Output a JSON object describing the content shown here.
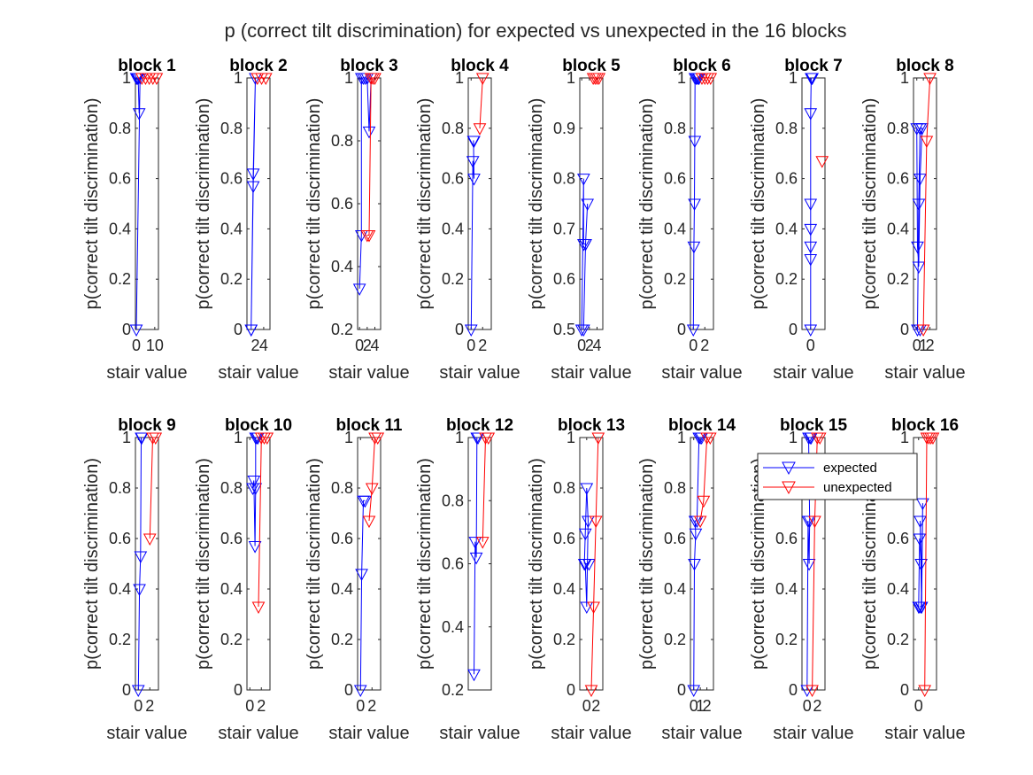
{
  "figure": {
    "title": "p (correct tilt discrimination) for expected vs unexpected in the 16 blocks"
  },
  "legend": {
    "expected": "expected",
    "unexpected": "unexpected",
    "location": "top-right (block 15 panel)"
  },
  "colors": {
    "expected": "#0000ff",
    "unexpected": "#ff0000"
  },
  "chart_data": [
    {
      "type": "line",
      "title": "block 1",
      "xlabel": "stair value",
      "ylabel": "p(correct tilt discrimination)",
      "xlim": [
        -0.5,
        12
      ],
      "ylim": [
        0,
        1
      ],
      "xticks": [
        0,
        10
      ],
      "yticks": [
        0,
        0.2,
        0.4,
        0.6,
        0.8,
        1
      ],
      "ytick_labels": [
        "0",
        "0.2",
        "0.4",
        "0.6",
        "0.8",
        "1"
      ],
      "series": [
        {
          "name": "expected",
          "x": [
            0,
            0.5,
            1,
            1.5,
            1,
            2,
            0
          ],
          "y": [
            1,
            1,
            1,
            0.86,
            1,
            1,
            0
          ]
        },
        {
          "name": "unexpected",
          "x": [
            3,
            5,
            7,
            9,
            11
          ],
          "y": [
            1,
            1,
            1,
            1,
            1
          ]
        }
      ]
    },
    {
      "type": "line",
      "title": "block 2",
      "xlabel": "stair value",
      "ylabel": "p(correct tilt discrimination)",
      "xlim": [
        0,
        5.5
      ],
      "ylim": [
        0,
        1
      ],
      "xticks": [
        2,
        4
      ],
      "yticks": [
        0,
        0.2,
        0.4,
        0.6,
        0.8,
        1
      ],
      "ytick_labels": [
        "0",
        "0.2",
        "0.4",
        "0.6",
        "0.8",
        "1"
      ],
      "series": [
        {
          "name": "expected",
          "x": [
            1,
            1.5,
            2,
            1.5,
            1
          ],
          "y": [
            0,
            0.57,
            1,
            0.62,
            0
          ]
        },
        {
          "name": "unexpected",
          "x": [
            2.5,
            3.5,
            4.5
          ],
          "y": [
            1,
            1,
            1
          ]
        }
      ]
    },
    {
      "type": "line",
      "title": "block 3",
      "xlabel": "stair value",
      "ylabel": "p(correct tilt discrimination)",
      "xlim": [
        -0.5,
        5.5
      ],
      "ylim": [
        0.2,
        1
      ],
      "xticks": [
        0,
        2,
        4
      ],
      "yticks": [
        0.2,
        0.4,
        0.6,
        0.8,
        1
      ],
      "ytick_labels": [
        "0.2",
        "0.4",
        "0.6",
        "0.8",
        "1"
      ],
      "series": [
        {
          "name": "expected",
          "x": [
            0,
            0.5,
            0.5,
            1,
            1.5,
            2,
            2.5,
            3
          ],
          "y": [
            0.33,
            0.5,
            1,
            1,
            1,
            1,
            0.83,
            1
          ]
        },
        {
          "name": "unexpected",
          "x": [
            2,
            2.5,
            3,
            3.5,
            4
          ],
          "y": [
            0.5,
            0.5,
            1,
            1,
            1
          ]
        }
      ]
    },
    {
      "type": "line",
      "title": "block 4",
      "xlabel": "stair value",
      "ylabel": "p(correct tilt discrimination)",
      "xlim": [
        -0.5,
        3.5
      ],
      "ylim": [
        0,
        1
      ],
      "xticks": [
        0,
        2
      ],
      "yticks": [
        0,
        0.2,
        0.4,
        0.6,
        0.8,
        1
      ],
      "ytick_labels": [
        "0",
        "0.2",
        "0.4",
        "0.6",
        "0.8",
        "1"
      ],
      "series": [
        {
          "name": "expected",
          "x": [
            0,
            0.3,
            0.5,
            0.4,
            0.5
          ],
          "y": [
            0,
            0.67,
            0.6,
            0.75,
            0.75
          ]
        },
        {
          "name": "unexpected",
          "x": [
            1.5,
            2
          ],
          "y": [
            0.8,
            1
          ]
        }
      ]
    },
    {
      "type": "line",
      "title": "block 5",
      "xlabel": "stair value",
      "ylabel": "p(correct tilt discrimination)",
      "xlim": [
        -0.5,
        5.5
      ],
      "ylim": [
        0.5,
        1
      ],
      "xticks": [
        0,
        2,
        4
      ],
      "yticks": [
        0.5,
        0.6,
        0.7,
        0.8,
        0.9,
        1
      ],
      "ytick_labels": [
        "0.5",
        "0.6",
        "0.7",
        "0.8",
        "0.9",
        "1"
      ],
      "series": [
        {
          "name": "expected",
          "x": [
            0,
            0.5,
            0.5,
            1,
            1.5,
            1,
            0.5
          ],
          "y": [
            0.5,
            0.8,
            0.67,
            0.67,
            0.75,
            0.67,
            0.5
          ]
        },
        {
          "name": "unexpected",
          "x": [
            3,
            3.5,
            4,
            4.5
          ],
          "y": [
            1,
            1,
            1,
            1
          ]
        }
      ]
    },
    {
      "type": "line",
      "title": "block 6",
      "xlabel": "stair value",
      "ylabel": "p(correct tilt discrimination)",
      "xlim": [
        -0.5,
        3.5
      ],
      "ylim": [
        0,
        1
      ],
      "xticks": [
        0,
        2
      ],
      "yticks": [
        0,
        0.2,
        0.4,
        0.6,
        0.8,
        1
      ],
      "ytick_labels": [
        "0",
        "0.2",
        "0.4",
        "0.6",
        "0.8",
        "1"
      ],
      "series": [
        {
          "name": "expected",
          "x": [
            0,
            0.1,
            0.2,
            0.25,
            0.3,
            0.5,
            0.7,
            0.9,
            1
          ],
          "y": [
            0,
            0.33,
            0.5,
            0.75,
            1,
            1,
            1,
            1,
            1
          ]
        },
        {
          "name": "unexpected",
          "x": [
            1.5,
            2,
            2.5,
            3
          ],
          "y": [
            1,
            1,
            1,
            1
          ]
        }
      ]
    },
    {
      "type": "line",
      "title": "block 7",
      "xlabel": "stair value",
      "ylabel": "p(correct tilt discrimination)",
      "xlim": [
        -1.5,
        2.5
      ],
      "ylim": [
        0,
        1
      ],
      "xticks": [
        0
      ],
      "yticks": [
        0,
        0.2,
        0.4,
        0.6,
        0.8,
        1
      ],
      "ytick_labels": [
        "0",
        "0.2",
        "0.4",
        "0.6",
        "0.8",
        "1"
      ],
      "series": [
        {
          "name": "expected",
          "x": [
            0,
            0,
            0,
            0,
            0,
            0,
            0.1,
            0.2,
            0.3
          ],
          "y": [
            0,
            0.28,
            0.33,
            0.4,
            0.5,
            0.86,
            1,
            1,
            1
          ]
        },
        {
          "name": "unexpected",
          "x": [
            2
          ],
          "y": [
            0.67
          ]
        }
      ]
    },
    {
      "type": "line",
      "title": "block 8",
      "xlabel": "stair value",
      "ylabel": "p(correct tilt discrimination)",
      "xlim": [
        -0.5,
        3
      ],
      "ylim": [
        0,
        1
      ],
      "xticks": [
        0,
        1,
        2
      ],
      "xtick_labels": [
        "0",
        "1",
        "2"
      ],
      "yticks": [
        0,
        0.2,
        0.4,
        0.6,
        0.8,
        1
      ],
      "ytick_labels": [
        "0",
        "0.2",
        "0.4",
        "0.6",
        "0.8",
        "1"
      ],
      "series": [
        {
          "name": "expected",
          "x": [
            0,
            0.1,
            0.3,
            0.5,
            0.8,
            0.5,
            0.3,
            0.1,
            0.5
          ],
          "y": [
            0.8,
            0.33,
            0.25,
            0.6,
            0.8,
            0.8,
            0.5,
            0,
            0
          ]
        },
        {
          "name": "unexpected",
          "x": [
            1,
            1.5,
            2
          ],
          "y": [
            0,
            0.75,
            1
          ]
        }
      ]
    },
    {
      "type": "line",
      "title": "block 9",
      "xlabel": "stair value",
      "ylabel": "p(correct tilt discrimination)",
      "xlim": [
        -0.5,
        3.5
      ],
      "ylim": [
        0,
        1
      ],
      "xticks": [
        0,
        2
      ],
      "yticks": [
        0,
        0.2,
        0.4,
        0.6,
        0.8,
        1
      ],
      "ytick_labels": [
        "0",
        "0.2",
        "0.4",
        "0.6",
        "0.8",
        "1"
      ],
      "series": [
        {
          "name": "expected",
          "x": [
            0,
            0.2,
            0.4,
            0.5,
            0.6
          ],
          "y": [
            0,
            0.4,
            0.53,
            1,
            1
          ]
        },
        {
          "name": "unexpected",
          "x": [
            2,
            2.5,
            3
          ],
          "y": [
            0.6,
            1,
            1
          ]
        }
      ]
    },
    {
      "type": "line",
      "title": "block 10",
      "xlabel": "stair value",
      "ylabel": "p(correct tilt discrimination)",
      "xlim": [
        -0.5,
        3.5
      ],
      "ylim": [
        0,
        1
      ],
      "xticks": [
        0,
        2
      ],
      "yticks": [
        0,
        0.2,
        0.4,
        0.6,
        0.8,
        1
      ],
      "ytick_labels": [
        "0",
        "0.2",
        "0.4",
        "0.6",
        "0.8",
        "1"
      ],
      "series": [
        {
          "name": "expected",
          "x": [
            0.5,
            0.7,
            0.9,
            1,
            1,
            1.2,
            1.4
          ],
          "y": [
            0.8,
            0.83,
            0.57,
            0.8,
            1,
            1,
            1
          ]
        },
        {
          "name": "unexpected",
          "x": [
            1.5,
            2,
            2.5,
            3
          ],
          "y": [
            0.33,
            1,
            1,
            1
          ]
        }
      ]
    },
    {
      "type": "line",
      "title": "block 11",
      "xlabel": "stair value",
      "ylabel": "p(correct tilt discrimination)",
      "xlim": [
        -0.5,
        3.5
      ],
      "ylim": [
        0,
        1
      ],
      "xticks": [
        0,
        2
      ],
      "yticks": [
        0,
        0.2,
        0.4,
        0.6,
        0.8,
        1
      ],
      "ytick_labels": [
        "0",
        "0.2",
        "0.4",
        "0.6",
        "0.8",
        "1"
      ],
      "series": [
        {
          "name": "expected",
          "x": [
            0,
            0.2,
            0.5,
            0.8
          ],
          "y": [
            0,
            0.46,
            0.75,
            0.75
          ]
        },
        {
          "name": "unexpected",
          "x": [
            1.5,
            2,
            2.5,
            3
          ],
          "y": [
            0.67,
            0.8,
            1,
            1
          ]
        }
      ]
    },
    {
      "type": "line",
      "title": "block 12",
      "xlabel": "stair value",
      "ylabel": "p(correct tilt discrimination)",
      "xlim": [
        -0.5,
        3.5
      ],
      "ylim": [
        0.2,
        1
      ],
      "xticks": [],
      "yticks": [
        0.2,
        0.4,
        0.6,
        0.8,
        1
      ],
      "ytick_labels": [
        "0.2",
        "0.4",
        "0.6",
        "0.8",
        "1"
      ],
      "series": [
        {
          "name": "expected",
          "x": [
            0.5,
            0.7,
            0.9,
            1,
            1.2
          ],
          "y": [
            0.25,
            0.67,
            0.62,
            1,
            1
          ]
        },
        {
          "name": "unexpected",
          "x": [
            2,
            2.5,
            3
          ],
          "y": [
            0.67,
            1,
            1
          ]
        }
      ]
    },
    {
      "type": "line",
      "title": "block 13",
      "xlabel": "stair value",
      "ylabel": "p(correct tilt discrimination)",
      "xlim": [
        -1.5,
        3.5
      ],
      "ylim": [
        0,
        1
      ],
      "xticks": [
        0,
        2
      ],
      "yticks": [
        0,
        0.2,
        0.4,
        0.6,
        0.8,
        1
      ],
      "ytick_labels": [
        "0",
        "0.2",
        "0.4",
        "0.6",
        "0.8",
        "1"
      ],
      "series": [
        {
          "name": "expected",
          "x": [
            -0.5,
            -0.3,
            0,
            0.3,
            0,
            -0.3,
            0.5
          ],
          "y": [
            0.5,
            0.62,
            0.8,
            0.67,
            0.33,
            0.5,
            0.5
          ]
        },
        {
          "name": "unexpected",
          "x": [
            1,
            1.5,
            2,
            2.5
          ],
          "y": [
            0,
            0.33,
            0.67,
            1
          ]
        }
      ]
    },
    {
      "type": "line",
      "title": "block 14",
      "xlabel": "stair value",
      "ylabel": "p(correct tilt discrimination)",
      "xlim": [
        -0.5,
        3
      ],
      "ylim": [
        0,
        1
      ],
      "xticks": [
        0,
        1,
        2
      ],
      "xtick_labels": [
        "0",
        "1",
        "2"
      ],
      "yticks": [
        0,
        0.2,
        0.4,
        0.6,
        0.8,
        1
      ],
      "ytick_labels": [
        "0",
        "0.2",
        "0.4",
        "0.6",
        "0.8",
        "1"
      ],
      "series": [
        {
          "name": "expected",
          "x": [
            0,
            0.1,
            0.3,
            0.2,
            0.5,
            0.8,
            1,
            1.2
          ],
          "y": [
            0,
            0.5,
            0.62,
            0.67,
            0.67,
            1,
            1,
            1
          ]
        },
        {
          "name": "unexpected",
          "x": [
            1,
            1.5,
            2,
            2.5
          ],
          "y": [
            0.67,
            0.75,
            1,
            1
          ]
        }
      ]
    },
    {
      "type": "line",
      "title": "block 15",
      "xlabel": "stair value",
      "ylabel": "p(correct tilt discrimination)",
      "xlim": [
        -1,
        3.5
      ],
      "ylim": [
        0,
        1
      ],
      "xticks": [
        0,
        2
      ],
      "yticks": [
        0,
        0.2,
        0.4,
        0.6,
        0.8,
        1
      ],
      "ytick_labels": [
        "0",
        "0.2",
        "0.4",
        "0.6",
        "0.8",
        "1"
      ],
      "series": [
        {
          "name": "expected",
          "x": [
            0,
            0.2,
            0.4,
            0.5,
            0.3,
            0.6,
            0.8
          ],
          "y": [
            0,
            0.67,
            0.5,
            0.67,
            1,
            1,
            1
          ]
        },
        {
          "name": "unexpected",
          "x": [
            1,
            1.5,
            2,
            2.5
          ],
          "y": [
            0,
            0.67,
            1,
            1
          ]
        }
      ]
    },
    {
      "type": "line",
      "title": "block 16",
      "xlabel": "stair value",
      "ylabel": "p(correct tilt discrimination)",
      "xlim": [
        -1,
        3.5
      ],
      "ylim": [
        0,
        1
      ],
      "xticks": [
        0
      ],
      "yticks": [
        0,
        0.2,
        0.4,
        0.6,
        0.8,
        1
      ],
      "ytick_labels": [
        "0",
        "0.2",
        "0.4",
        "0.6",
        "0.8",
        "1"
      ],
      "series": [
        {
          "name": "expected",
          "x": [
            0,
            0.2,
            0.5,
            0.3,
            0.6,
            0.8,
            0.5,
            0.2
          ],
          "y": [
            0.33,
            0.6,
            0.5,
            0.67,
            0.33,
            0.74,
            0.33,
            0.33
          ]
        },
        {
          "name": "unexpected",
          "x": [
            1.2,
            1.6,
            2,
            2.4,
            2.8
          ],
          "y": [
            0,
            1,
            1,
            1,
            1
          ]
        }
      ]
    }
  ]
}
